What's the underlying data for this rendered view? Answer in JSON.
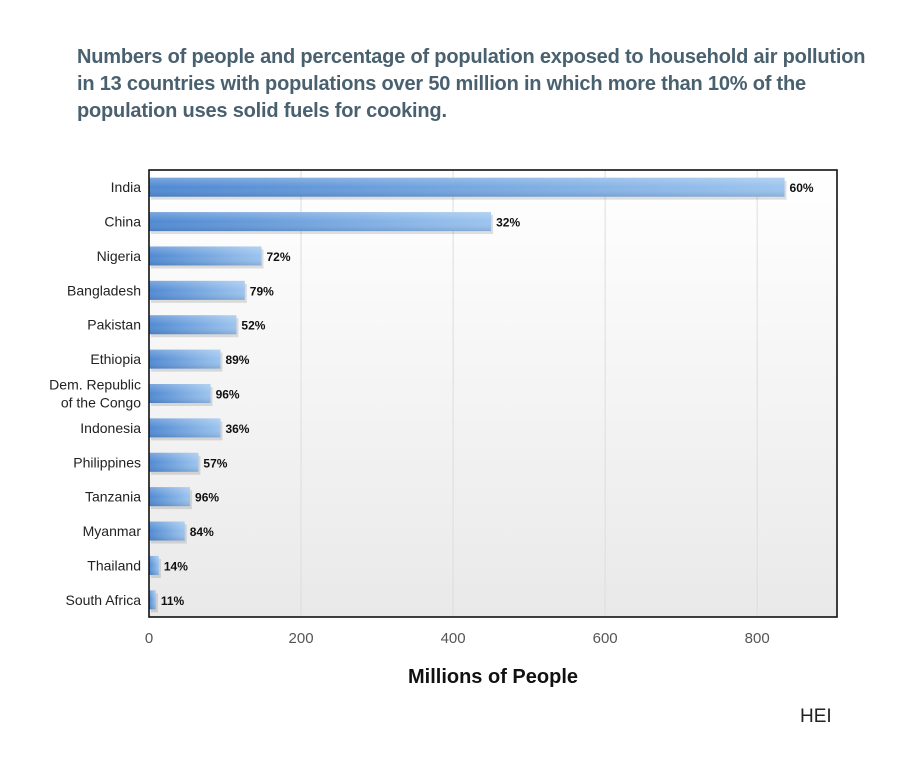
{
  "title": "Numbers of people and percentage of population exposed to household air pollution in 13 countries with populations over 50 million in which more than 10% of the population uses solid fuels for cooking.",
  "credit": "HEI",
  "colors": {
    "bar_dark": "#4f89d2",
    "bar_light": "#9cc4ee",
    "plot_bg_top": "#ffffff",
    "plot_bg_bottom": "#e9e9e9",
    "grid": "#dddddd"
  },
  "chart_data": {
    "type": "bar",
    "orientation": "horizontal",
    "categories": [
      "India",
      "China",
      "Nigeria",
      "Bangladesh",
      "Pakistan",
      "Ethiopia",
      "Dem. Republic\nof the Congo",
      "Indonesia",
      "Philippines",
      "Tanzania",
      "Myanmar",
      "Thailand",
      "South Africa"
    ],
    "values": [
      836,
      450,
      148,
      126,
      115,
      94,
      81,
      94,
      65,
      54,
      47,
      13,
      9
    ],
    "data_labels": [
      "60%",
      "32%",
      "72%",
      "79%",
      "52%",
      "89%",
      "96%",
      "36%",
      "57%",
      "96%",
      "84%",
      "14%",
      "11%"
    ],
    "xlabel": "Millions of People",
    "ylabel": "",
    "xlim": [
      0,
      905
    ],
    "xticks": [
      0,
      200,
      400,
      600,
      800
    ],
    "grid": true,
    "legend": "none"
  }
}
